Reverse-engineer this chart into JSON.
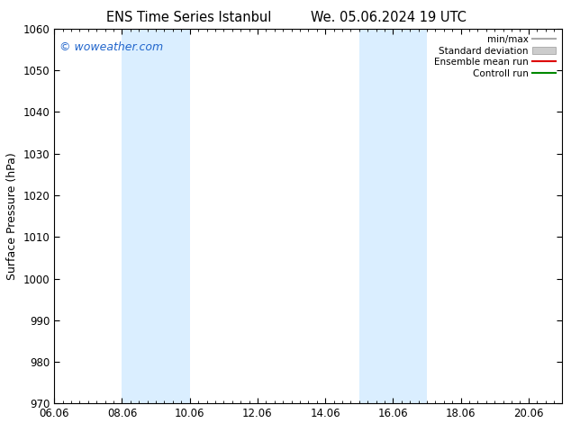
{
  "title_left": "ENS Time Series Istanbul",
  "title_right": "We. 05.06.2024 19 UTC",
  "ylabel": "Surface Pressure (hPa)",
  "ylim": [
    970,
    1060
  ],
  "yticks": [
    970,
    980,
    990,
    1000,
    1010,
    1020,
    1030,
    1040,
    1050,
    1060
  ],
  "xlim": [
    0,
    15
  ],
  "xtick_labels": [
    "06.06",
    "08.06",
    "10.06",
    "12.06",
    "14.06",
    "16.06",
    "18.06",
    "20.06"
  ],
  "xtick_positions": [
    0,
    2,
    4,
    6,
    8,
    10,
    12,
    14
  ],
  "shade_bands": [
    {
      "x_start": 2,
      "x_end": 4
    },
    {
      "x_start": 9,
      "x_end": 11
    }
  ],
  "shade_color": "#daeeff",
  "watermark_text": "© woweather.com",
  "watermark_color": "#2266cc",
  "legend_items": [
    {
      "label": "min/max",
      "color": "#aaaaaa",
      "type": "line"
    },
    {
      "label": "Standard deviation",
      "color": "#cccccc",
      "type": "box"
    },
    {
      "label": "Ensemble mean run",
      "color": "#dd0000",
      "type": "line"
    },
    {
      "label": "Controll run",
      "color": "#008800",
      "type": "line"
    }
  ],
  "background_color": "#ffffff",
  "title_fontsize": 10.5,
  "tick_fontsize": 8.5,
  "label_fontsize": 9,
  "watermark_fontsize": 9
}
